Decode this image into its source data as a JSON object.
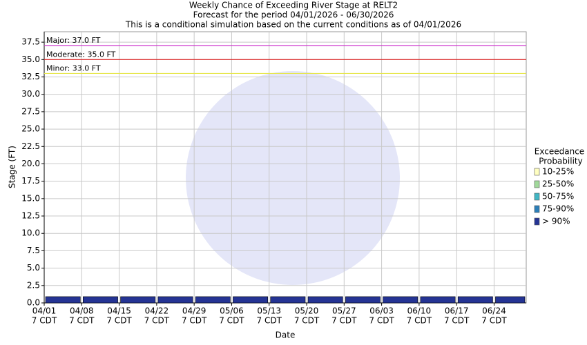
{
  "chart_data": {
    "type": "bar",
    "title": "Weekly Chance of Exceeding River Stage at RELT2",
    "subtitle": [
      "Forecast for the period 04/01/2026 - 06/30/2026",
      "This is a conditional simulation based on the current conditions as of 04/01/2026"
    ],
    "x_label": "Date",
    "y_label": "Stage (FT)",
    "xlim": [
      0,
      90
    ],
    "xticks": [
      {
        "value": 0,
        "label": [
          "04/01",
          "7 CDT"
        ]
      },
      {
        "value": 7,
        "label": [
          "04/08",
          "7 CDT"
        ]
      },
      {
        "value": 14,
        "label": [
          "04/15",
          "7 CDT"
        ]
      },
      {
        "value": 21,
        "label": [
          "04/22",
          "7 CDT"
        ]
      },
      {
        "value": 28,
        "label": [
          "04/29",
          "7 CDT"
        ]
      },
      {
        "value": 35,
        "label": [
          "05/06",
          "7 CDT"
        ]
      },
      {
        "value": 42,
        "label": [
          "05/13",
          "7 CDT"
        ]
      },
      {
        "value": 49,
        "label": [
          "05/20",
          "7 CDT"
        ]
      },
      {
        "value": 56,
        "label": [
          "05/27",
          "7 CDT"
        ]
      },
      {
        "value": 63,
        "label": [
          "06/03",
          "7 CDT"
        ]
      },
      {
        "value": 70,
        "label": [
          "06/10",
          "7 CDT"
        ]
      },
      {
        "value": 77,
        "label": [
          "06/17",
          "7 CDT"
        ]
      },
      {
        "value": 84,
        "label": [
          "06/24",
          "7 CDT"
        ]
      }
    ],
    "ylim": [
      0,
      39
    ],
    "yticks": [
      {
        "value": 0,
        "label": "0.0"
      },
      2.5,
      {
        "value": 5,
        "label": "5.0"
      },
      7.5,
      {
        "value": 10,
        "label": "10.0"
      },
      12.5,
      {
        "value": 15,
        "label": "15.0"
      },
      17.5,
      {
        "value": 20,
        "label": "20.0"
      },
      22.5,
      {
        "value": 25,
        "label": "25.0"
      },
      27.5,
      {
        "value": 30,
        "label": "30.0"
      },
      32.5,
      {
        "value": 35,
        "label": "35.0"
      },
      37.5
    ],
    "grid": true,
    "thresholds": [
      {
        "label": "Major: 37.0 FT",
        "value": 37,
        "color": "#cc33cc"
      },
      {
        "label": "Moderate: 35.0 FT",
        "value": 35,
        "color": "#dd2222"
      },
      {
        "label": "Minor: 33.0 FT",
        "value": 33,
        "color": "#e6e64c"
      }
    ],
    "legend_title": [
      "Exceedance",
      "Probability"
    ],
    "series": [
      {
        "name": "10-25%",
        "color": "#ffffc0"
      },
      {
        "name": "25-50%",
        "color": "#a1d99b"
      },
      {
        "name": "50-75%",
        "color": "#41b6c4"
      },
      {
        "name": "75-90%",
        "color": "#2c7fb8"
      },
      {
        "name": "> 90%",
        "color": "#253494",
        "values": [
          0.9,
          0.9,
          0.9,
          0.9,
          0.9,
          0.9,
          0.9,
          0.9,
          0.9,
          0.9,
          0.9,
          0.9,
          0.9
        ]
      }
    ]
  }
}
